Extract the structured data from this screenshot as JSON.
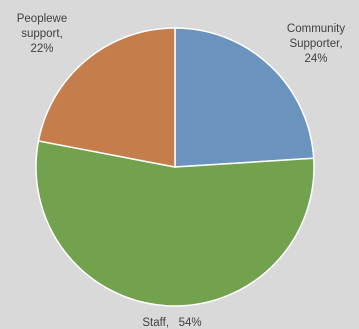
{
  "chart_data": {
    "type": "pie",
    "slices": [
      {
        "label_lines": [
          "Community",
          "Supporter,",
          "24%"
        ],
        "value": 24,
        "color": "#6a93bd"
      },
      {
        "label_lines": [
          "Staff,   54%"
        ],
        "value": 54,
        "color": "#73a24f"
      },
      {
        "label_lines": [
          "Peoplewe",
          "support,",
          "22%"
        ],
        "value": 22,
        "color": "#c67d4c"
      }
    ],
    "start_angle_deg": 0,
    "direction": "clockwise",
    "legend": "none",
    "data_labels": "outside"
  }
}
